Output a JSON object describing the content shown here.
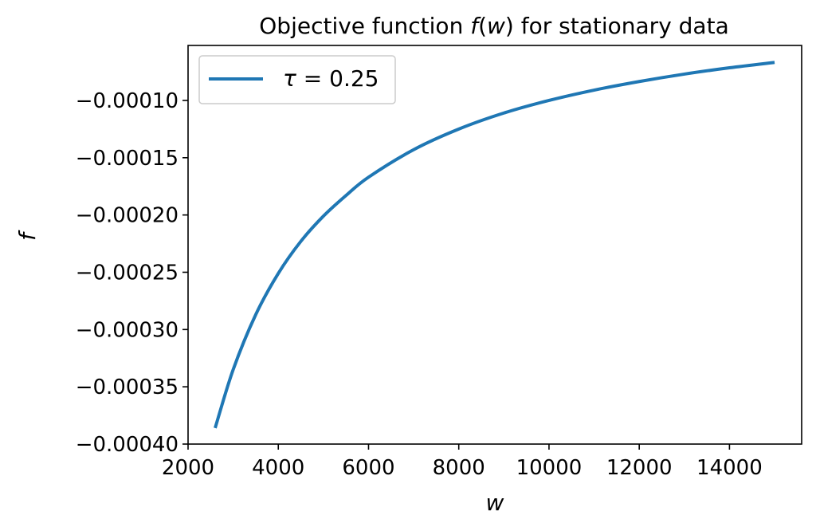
{
  "chart_data": {
    "type": "line",
    "title": "Objective function f(w) for stationary data",
    "title_parts": {
      "before": "Objective function ",
      "func": "f",
      "open": "(",
      "var": "w",
      "close": ")",
      "after": " for stationary data"
    },
    "xlabel": "w",
    "ylabel": "f",
    "xlim": [
      2000,
      15600
    ],
    "ylim": [
      -0.0004,
      -5.2e-05
    ],
    "x_ticks": [
      2000,
      4000,
      6000,
      8000,
      10000,
      12000,
      14000
    ],
    "x_tick_labels": [
      "2000",
      "4000",
      "6000",
      "8000",
      "10000",
      "12000",
      "14000"
    ],
    "y_ticks": [
      -0.0001,
      -0.00015,
      -0.0002,
      -0.00025,
      -0.0003,
      -0.00035,
      -0.0004
    ],
    "y_tick_labels": [
      "−0.00010",
      "−0.00015",
      "−0.00020",
      "−0.00025",
      "−0.00030",
      "−0.00035",
      "−0.00040"
    ],
    "grid": false,
    "legend_position": "top-left",
    "series": [
      {
        "name": "τ = 0.25",
        "name_parts": {
          "symbol": "τ",
          "eq": " = ",
          "value": "0.25"
        },
        "color": "#1f77b4",
        "x": [
          2600,
          3000,
          3500,
          4000,
          4500,
          5000,
          5500,
          6000,
          7000,
          8000,
          9000,
          10000,
          11000,
          12000,
          13000,
          14000,
          15000
        ],
        "y": [
          -0.000386,
          -0.000335,
          -0.000287,
          -0.000251,
          -0.000223,
          -0.000201,
          -0.000183,
          -0.000167,
          -0.000143,
          -0.000125,
          -0.000111,
          -0.0001,
          -9.1e-05,
          -8.35e-05,
          -7.7e-05,
          -7.15e-05,
          -6.68e-05
        ]
      }
    ]
  }
}
